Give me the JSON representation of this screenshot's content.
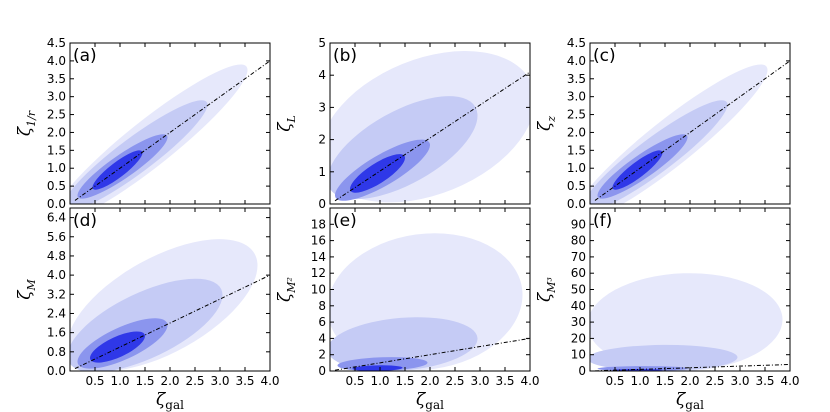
{
  "colors": {
    "level1": "#e6e8fb",
    "level2": "#c5cbf5",
    "level3": "#8b95ee",
    "level4": "#2f38e8",
    "trend": "#000000"
  },
  "chart_data": [
    {
      "type": "contour",
      "panel": "(a)",
      "ylabel_main": "ζ",
      "ylabel_sub": "1/r",
      "xlabel_main": "ζ",
      "xlabel_sub": "gal",
      "xlim": [
        0,
        4.0
      ],
      "ylim": [
        0,
        4.5
      ],
      "xticks": [
        "0.5",
        "1.0",
        "1.5",
        "2.0",
        "2.5",
        "3.0",
        "3.5",
        "4.0"
      ],
      "xtick_values": [
        0.5,
        1.0,
        1.5,
        2.0,
        2.5,
        3.0,
        3.5,
        4.0
      ],
      "yticks": [
        "0.0",
        "0.5",
        "1.0",
        "1.5",
        "2.0",
        "2.5",
        "3.0",
        "3.5",
        "4.0",
        "4.5"
      ],
      "ytick_values": [
        0,
        0.5,
        1.0,
        1.5,
        2.0,
        2.5,
        3.0,
        3.5,
        4.0,
        4.5
      ],
      "trend": {
        "x": [
          0.1,
          4.0
        ],
        "y": [
          0.1,
          4.0
        ]
      },
      "contours": [
        {
          "level": 1,
          "center": [
            1.6,
            1.7
          ],
          "sx": 1.95,
          "sy": 2.2,
          "rho": 0.93
        },
        {
          "level": 2,
          "center": [
            1.3,
            1.35
          ],
          "sx": 1.45,
          "sy": 1.55,
          "rho": 0.92
        },
        {
          "level": 3,
          "center": [
            1.05,
            1.05
          ],
          "sx": 0.9,
          "sy": 0.9,
          "rho": 0.9
        },
        {
          "level": 4,
          "center": [
            0.95,
            0.95
          ],
          "sx": 0.5,
          "sy": 0.55,
          "rho": 0.88
        }
      ]
    },
    {
      "type": "contour",
      "panel": "(b)",
      "ylabel_main": "ζ",
      "ylabel_sub": "L",
      "xlabel_main": "ζ",
      "xlabel_sub": "gal",
      "xlim": [
        0,
        4.0
      ],
      "ylim": [
        0,
        5
      ],
      "xticks": [
        "0.5",
        "1.0",
        "1.5",
        "2.0",
        "2.5",
        "3.0",
        "3.5",
        "4.0"
      ],
      "xtick_values": [
        0.5,
        1.0,
        1.5,
        2.0,
        2.5,
        3.0,
        3.5,
        4.0
      ],
      "yticks": [
        "0",
        "1",
        "2",
        "3",
        "4",
        "5"
      ],
      "ytick_values": [
        0,
        1,
        2,
        3,
        4,
        5
      ],
      "trend": {
        "x": [
          0.1,
          4.0
        ],
        "y": [
          0.1,
          4.1
        ]
      },
      "contours": [
        {
          "level": 1,
          "center": [
            1.95,
            2.4
          ],
          "sx": 2.15,
          "sy": 2.35,
          "rho": 0.35
        },
        {
          "level": 2,
          "center": [
            1.45,
            1.75
          ],
          "sx": 1.5,
          "sy": 1.6,
          "rho": 0.62
        },
        {
          "level": 3,
          "center": [
            1.05,
            1.05
          ],
          "sx": 0.95,
          "sy": 0.95,
          "rho": 0.82
        },
        {
          "level": 4,
          "center": [
            0.95,
            0.95
          ],
          "sx": 0.55,
          "sy": 0.6,
          "rho": 0.8
        }
      ]
    },
    {
      "type": "contour",
      "panel": "(c)",
      "ylabel_main": "ζ",
      "ylabel_sub": "z",
      "xlabel_main": "ζ",
      "xlabel_sub": "gal",
      "xlim": [
        0,
        4.0
      ],
      "ylim": [
        0,
        4.5
      ],
      "xticks": [
        "0.5",
        "1.0",
        "1.5",
        "2.0",
        "2.5",
        "3.0",
        "3.5",
        "4.0"
      ],
      "xtick_values": [
        0.5,
        1.0,
        1.5,
        2.0,
        2.5,
        3.0,
        3.5,
        4.0
      ],
      "yticks": [
        "0.0",
        "0.5",
        "1.0",
        "1.5",
        "2.0",
        "2.5",
        "3.0",
        "3.5",
        "4.0",
        "4.5"
      ],
      "ytick_values": [
        0,
        0.5,
        1.0,
        1.5,
        2.0,
        2.5,
        3.0,
        3.5,
        4.0,
        4.5
      ],
      "trend": {
        "x": [
          0.1,
          4.0
        ],
        "y": [
          0.1,
          4.0
        ]
      },
      "contours": [
        {
          "level": 1,
          "center": [
            1.6,
            1.7
          ],
          "sx": 1.95,
          "sy": 2.2,
          "rho": 0.93
        },
        {
          "level": 2,
          "center": [
            1.3,
            1.35
          ],
          "sx": 1.45,
          "sy": 1.55,
          "rho": 0.92
        },
        {
          "level": 3,
          "center": [
            1.05,
            1.05
          ],
          "sx": 0.9,
          "sy": 0.9,
          "rho": 0.9
        },
        {
          "level": 4,
          "center": [
            0.95,
            0.95
          ],
          "sx": 0.5,
          "sy": 0.55,
          "rho": 0.88
        }
      ]
    },
    {
      "type": "contour",
      "panel": "(d)",
      "ylabel_main": "ζ",
      "ylabel_sub": "M",
      "xlabel_main": "ζ",
      "xlabel_sub": "gal",
      "xlim": [
        0,
        4.0
      ],
      "ylim": [
        0,
        6.8
      ],
      "xticks": [
        "0.5",
        "1.0",
        "1.5",
        "2.0",
        "2.5",
        "3.0",
        "3.5",
        "4.0"
      ],
      "xtick_values": [
        0.5,
        1.0,
        1.5,
        2.0,
        2.5,
        3.0,
        3.5,
        4.0
      ],
      "yticks": [
        "0.0",
        "0.8",
        "1.6",
        "2.4",
        "3.2",
        "4.0",
        "4.8",
        "5.6",
        "6.4"
      ],
      "ytick_values": [
        0,
        0.8,
        1.6,
        2.4,
        3.2,
        4.0,
        4.8,
        5.6,
        6.4
      ],
      "trend": {
        "x": [
          0.1,
          4.0
        ],
        "y": [
          0.1,
          4.0
        ]
      },
      "contours": [
        {
          "level": 1,
          "center": [
            1.85,
            2.75
          ],
          "sx": 1.9,
          "sy": 2.75,
          "rho": 0.6
        },
        {
          "level": 2,
          "center": [
            1.5,
            1.9
          ],
          "sx": 1.55,
          "sy": 1.95,
          "rho": 0.65
        },
        {
          "level": 3,
          "center": [
            1.05,
            1.15
          ],
          "sx": 0.9,
          "sy": 1.05,
          "rho": 0.72
        },
        {
          "level": 4,
          "center": [
            0.95,
            1.0
          ],
          "sx": 0.55,
          "sy": 0.65,
          "rho": 0.7
        }
      ]
    },
    {
      "type": "contour",
      "panel": "(e)",
      "ylabel_main": "ζ",
      "ylabel_sub": "M²",
      "xlabel_main": "ζ",
      "xlabel_sub": "gal",
      "xlim": [
        0,
        4.0
      ],
      "ylim": [
        0,
        20
      ],
      "xticks": [
        "0.5",
        "1.0",
        "1.5",
        "2.0",
        "2.5",
        "3.0",
        "3.5",
        "4.0"
      ],
      "xtick_values": [
        0.5,
        1.0,
        1.5,
        2.0,
        2.5,
        3.0,
        3.5,
        4.0
      ],
      "yticks": [
        "0",
        "2",
        "4",
        "6",
        "8",
        "10",
        "12",
        "14",
        "16",
        "18"
      ],
      "ytick_values": [
        0,
        2,
        4,
        6,
        8,
        10,
        12,
        14,
        16,
        18
      ],
      "trend": {
        "x": [
          0.1,
          4.0
        ],
        "y": [
          0.1,
          4.0
        ]
      },
      "contours": [
        {
          "level": 1,
          "center": [
            1.9,
            8.5
          ],
          "sx": 1.95,
          "sy": 8.4,
          "rho": 0.1
        },
        {
          "level": 2,
          "center": [
            1.45,
            3.3
          ],
          "sx": 1.5,
          "sy": 3.3,
          "rho": 0.2
        },
        {
          "level": 3,
          "center": [
            1.05,
            0.85
          ],
          "sx": 0.9,
          "sy": 0.85,
          "rho": 0.2
        },
        {
          "level": 4,
          "center": [
            0.95,
            0.35
          ],
          "sx": 0.5,
          "sy": 0.35,
          "rho": 0.15
        }
      ]
    },
    {
      "type": "contour",
      "panel": "(f)",
      "ylabel_main": "ζ",
      "ylabel_sub": "M³",
      "xlabel_main": "ζ",
      "xlabel_sub": "gal",
      "xlim": [
        0,
        4.0
      ],
      "ylim": [
        0,
        100
      ],
      "xticks": [
        "0.5",
        "1.0",
        "1.5",
        "2.0",
        "2.5",
        "3.0",
        "3.5",
        "4.0"
      ],
      "xtick_values": [
        0.5,
        1.0,
        1.5,
        2.0,
        2.5,
        3.0,
        3.5,
        4.0
      ],
      "yticks": [
        "0",
        "10",
        "20",
        "30",
        "40",
        "50",
        "60",
        "70",
        "80",
        "90"
      ],
      "ytick_values": [
        0,
        10,
        20,
        30,
        40,
        50,
        60,
        70,
        80,
        90
      ],
      "trend": {
        "x": [
          0.1,
          4.0
        ],
        "y": [
          0.1,
          4.0
        ]
      },
      "contours": [
        {
          "level": 1,
          "center": [
            1.9,
            30
          ],
          "sx": 1.95,
          "sy": 30,
          "rho": 0.05
        },
        {
          "level": 2,
          "center": [
            1.45,
            8
          ],
          "sx": 1.5,
          "sy": 8,
          "rho": 0.05
        },
        {
          "level": 3,
          "center": [
            1.05,
            1.5
          ],
          "sx": 0.9,
          "sy": 1.5,
          "rho": 0.05
        },
        {
          "level": 4,
          "center": [
            0.95,
            0.6
          ],
          "sx": 0.5,
          "sy": 0.6,
          "rho": 0.05
        }
      ]
    }
  ]
}
